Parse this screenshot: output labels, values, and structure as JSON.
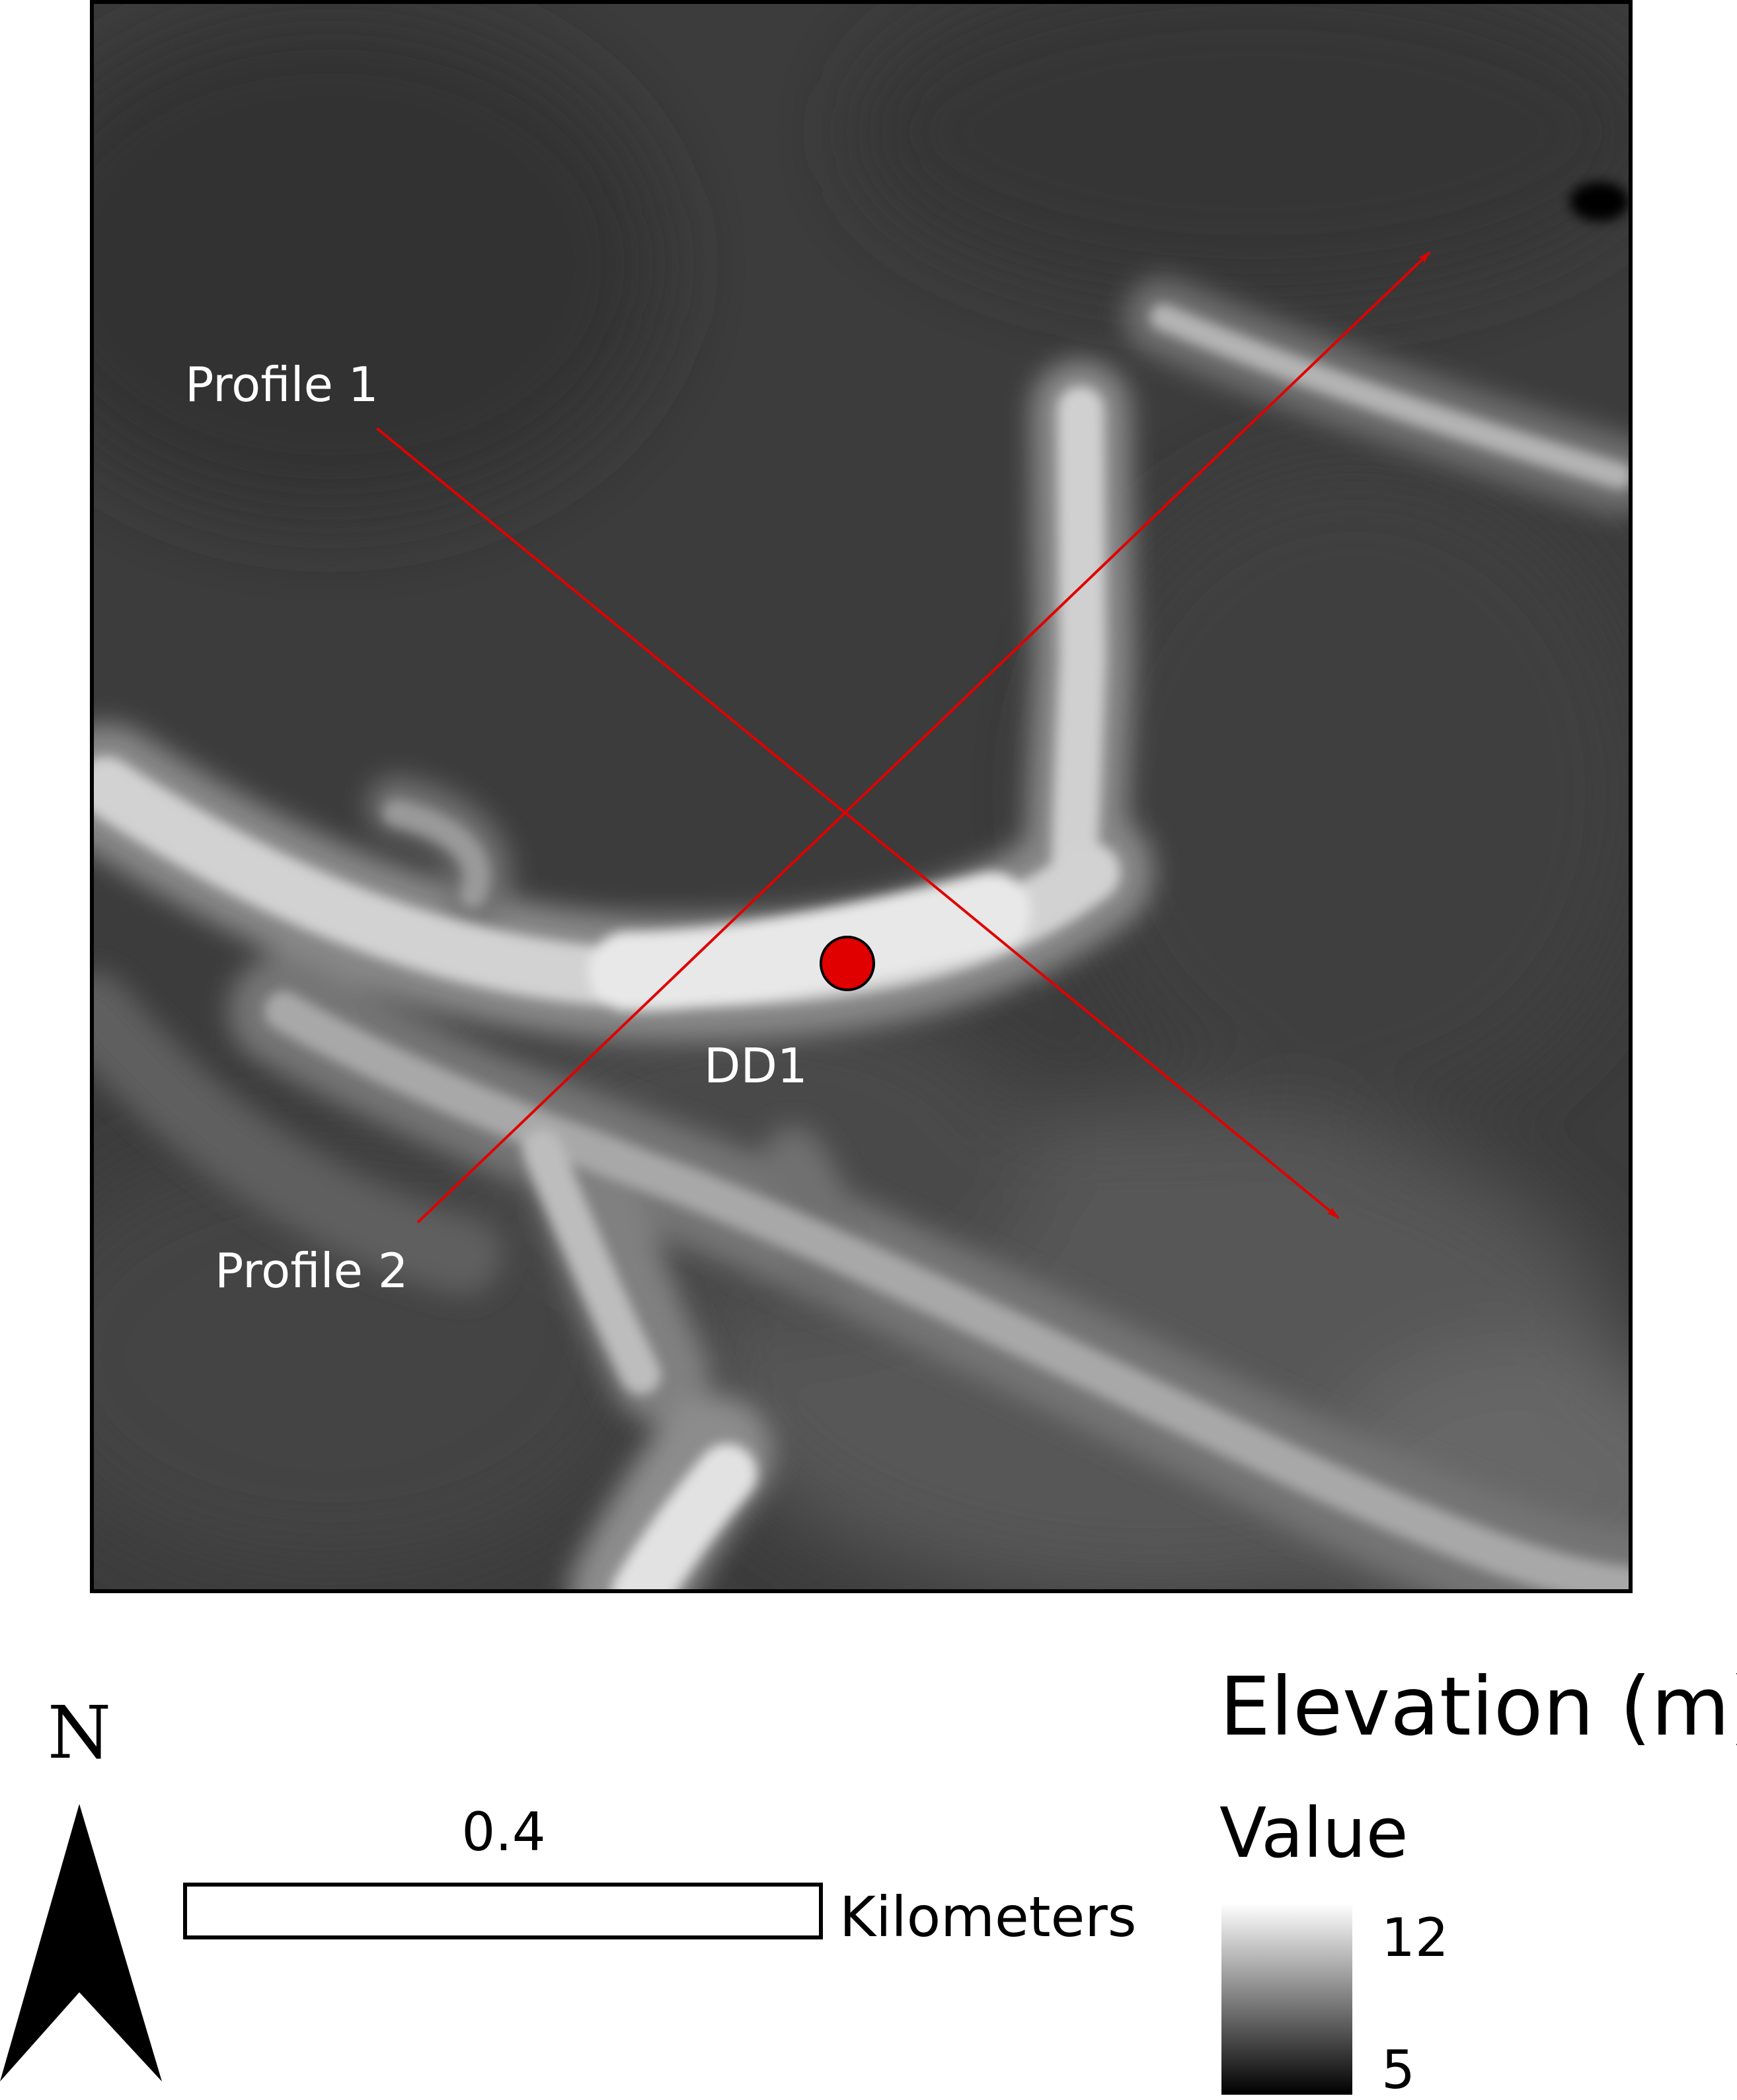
{
  "map": {
    "labels": {
      "profile1": "Profile 1",
      "profile2": "Profile 2",
      "site": "DD1"
    },
    "colors": {
      "profile_line": "#e00000",
      "site_marker": "#e00000"
    }
  },
  "north_arrow": {
    "label": "N"
  },
  "scale_bar": {
    "value": "0.4",
    "unit": "Kilometers"
  },
  "legend": {
    "title": "Elevation (m)",
    "subtitle": "Value",
    "max_label": "12",
    "min_label": "5",
    "ramp": [
      "#000000",
      "#ffffff"
    ]
  }
}
